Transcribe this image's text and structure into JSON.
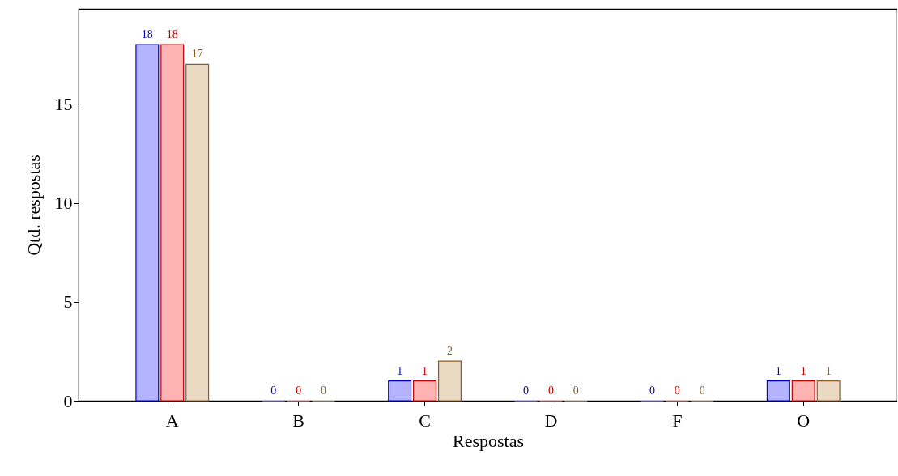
{
  "chart_data": {
    "type": "bar",
    "xlabel": "Respostas",
    "ylabel": "Qtd. respostas",
    "categories": [
      "A",
      "B",
      "C",
      "D",
      "F",
      "O"
    ],
    "series": [
      {
        "color": "#b3b3ff",
        "values": [
          18,
          0,
          1,
          0,
          0,
          1
        ]
      },
      {
        "color": "#ffb3b3",
        "values": [
          18,
          0,
          1,
          0,
          0,
          1
        ]
      },
      {
        "color": "#e9d9c3",
        "values": [
          17,
          0,
          2,
          0,
          0,
          1
        ]
      }
    ],
    "ylim": [
      0,
      19.8
    ],
    "yticks": [
      0,
      5,
      10,
      15
    ],
    "grid": false,
    "data_labels": true
  }
}
